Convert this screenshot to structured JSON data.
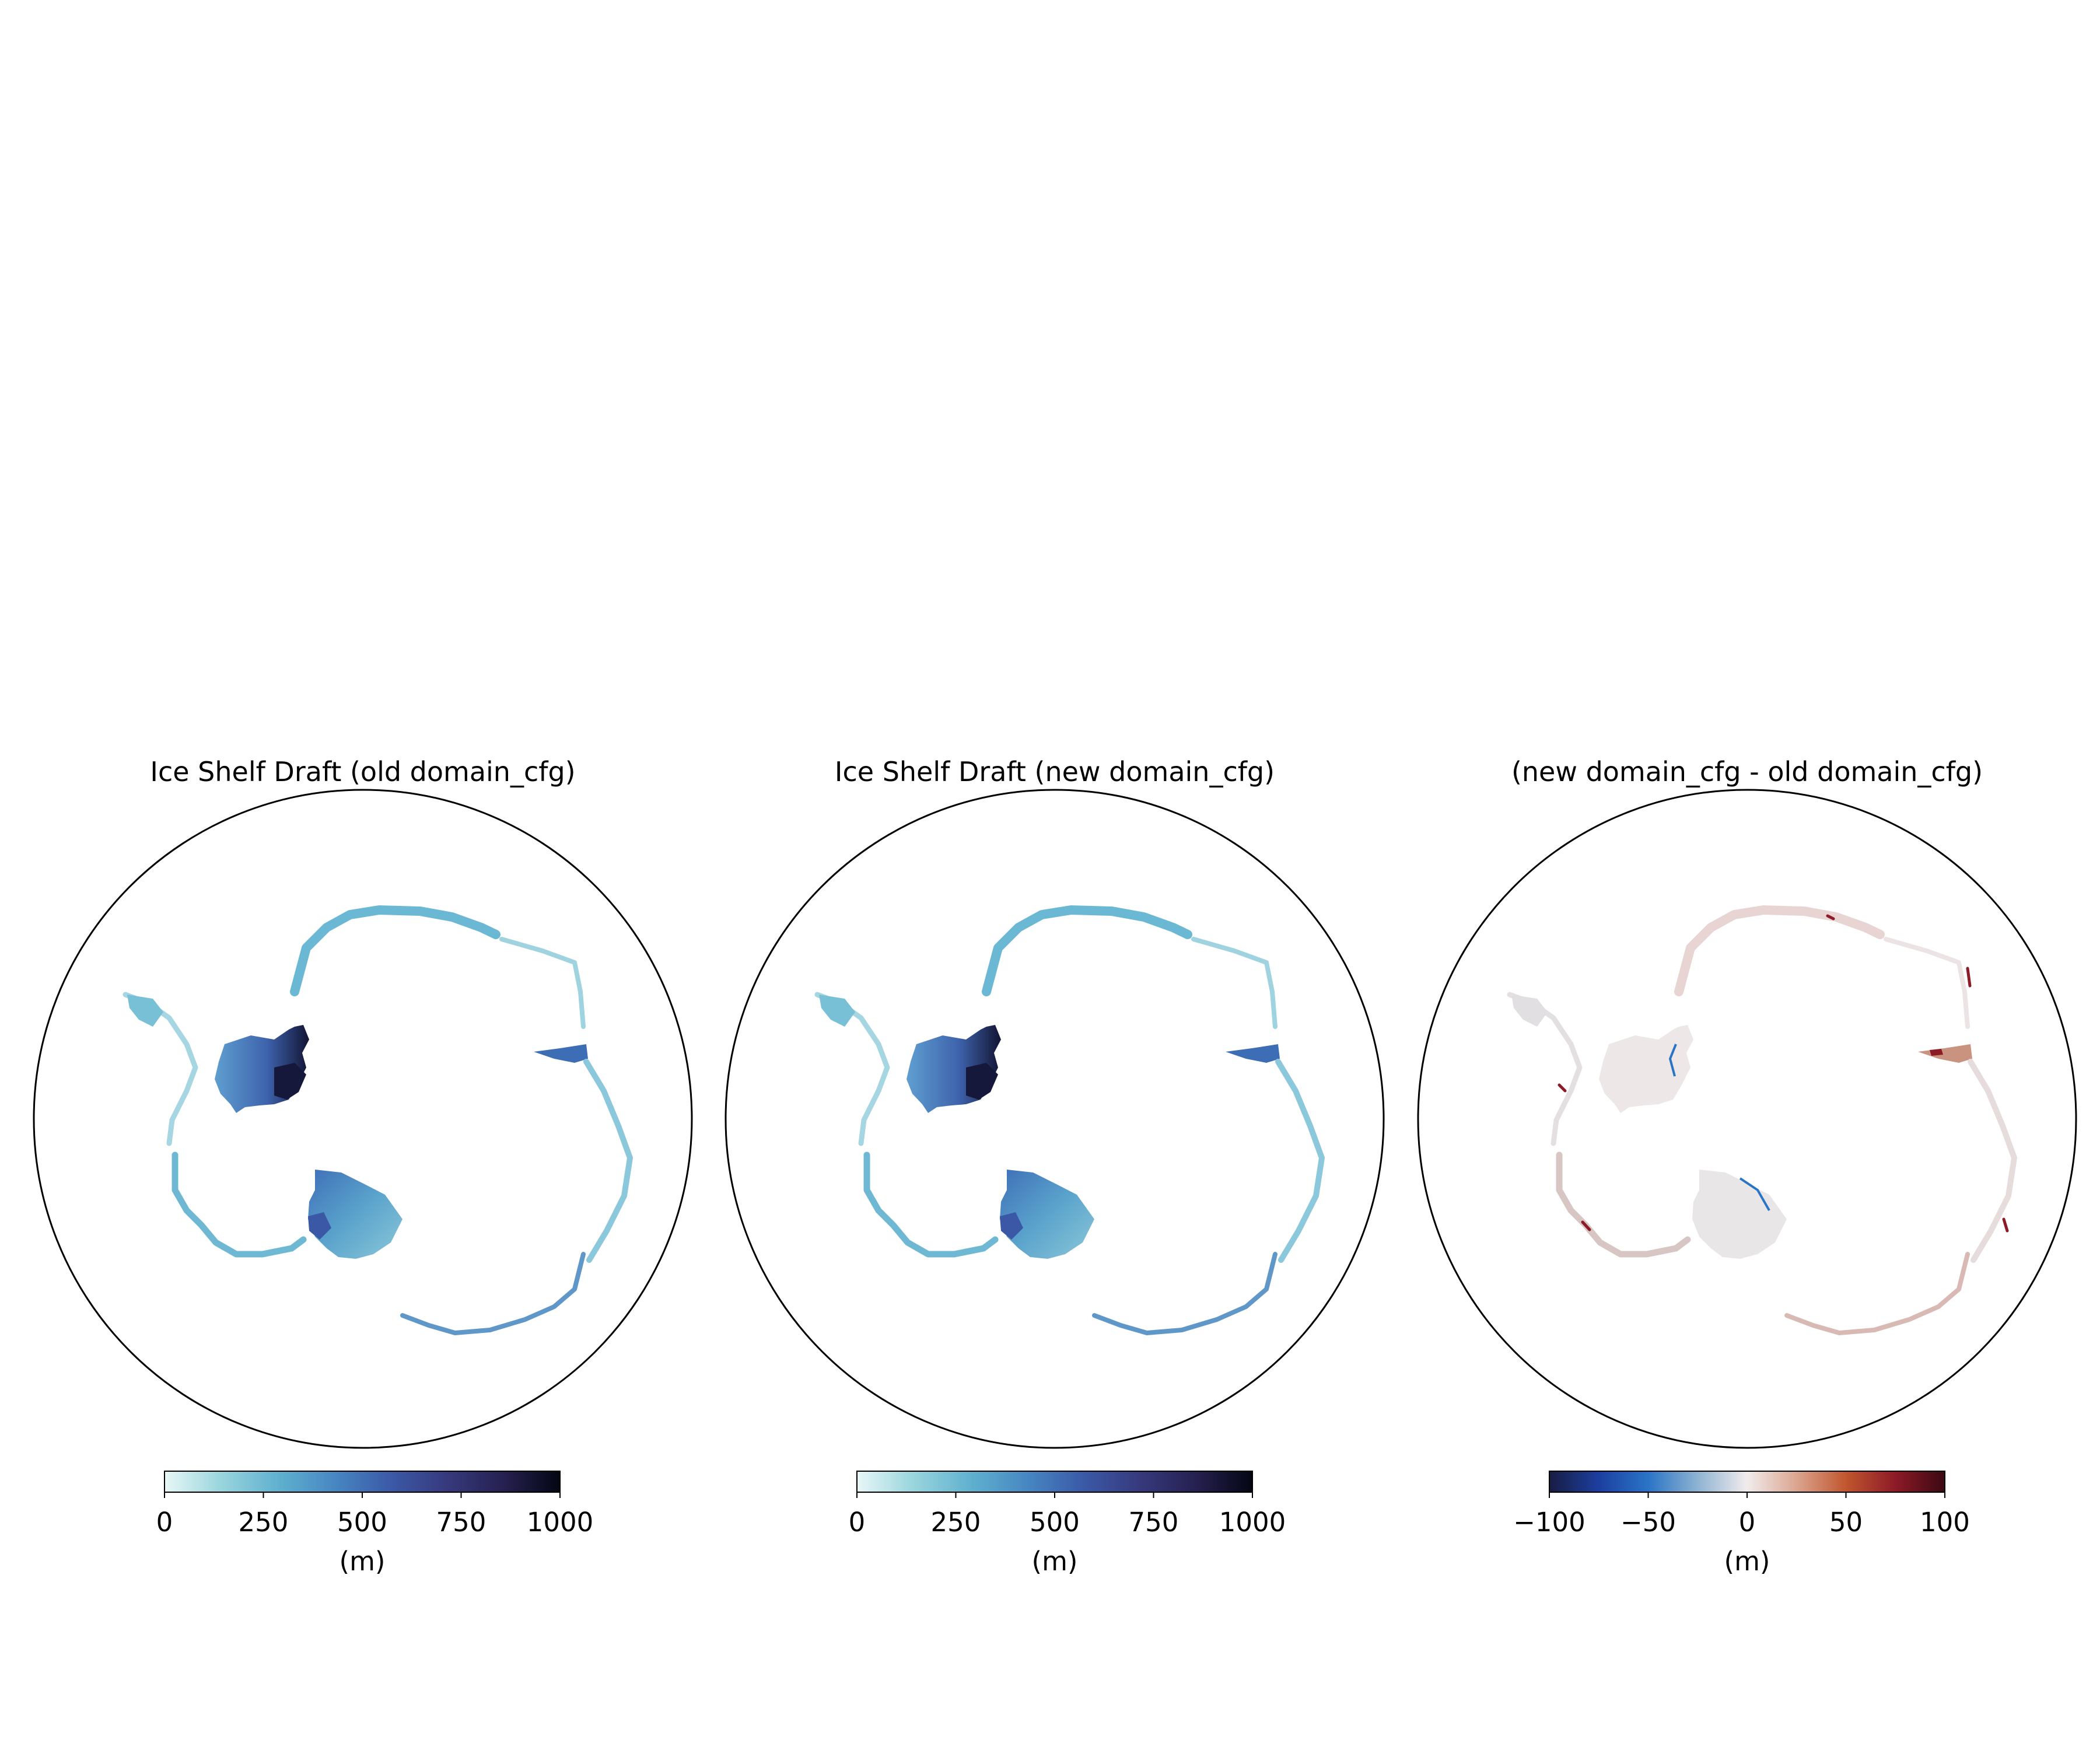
{
  "figure": {
    "panels": [
      {
        "id": "old",
        "title": "Ice Shelf Draft (old domain_cfg)",
        "colormap": "ice",
        "colorbar": {
          "ticks": [
            "0",
            "250",
            "500",
            "750",
            "1000"
          ],
          "label": "(m)",
          "range": [
            0,
            1000
          ],
          "stops": [
            "#e9f7f7",
            "#9ad6dd",
            "#5fb0cf",
            "#4787c2",
            "#3b5aa8",
            "#373a7e",
            "#25204f",
            "#040613"
          ]
        }
      },
      {
        "id": "new",
        "title": "Ice Shelf Draft (new domain_cfg)",
        "colormap": "ice",
        "colorbar": {
          "ticks": [
            "0",
            "250",
            "500",
            "750",
            "1000"
          ],
          "label": "(m)",
          "range": [
            0,
            1000
          ],
          "stops": [
            "#e9f7f7",
            "#9ad6dd",
            "#5fb0cf",
            "#4787c2",
            "#3b5aa8",
            "#373a7e",
            "#25204f",
            "#040613"
          ]
        }
      },
      {
        "id": "diff",
        "title": "(new domain_cfg - old domain_cfg)",
        "colormap": "balance",
        "colorbar": {
          "ticks": [
            "−100",
            "−50",
            "0",
            "50",
            "100"
          ],
          "label": "(m)",
          "range": [
            -100,
            100
          ],
          "stops": [
            "#181c43",
            "#1c3fa0",
            "#2a74c6",
            "#8eb3d2",
            "#f1ecec",
            "#dba590",
            "#c0562e",
            "#8d1a27",
            "#3c0912"
          ]
        }
      }
    ]
  }
}
